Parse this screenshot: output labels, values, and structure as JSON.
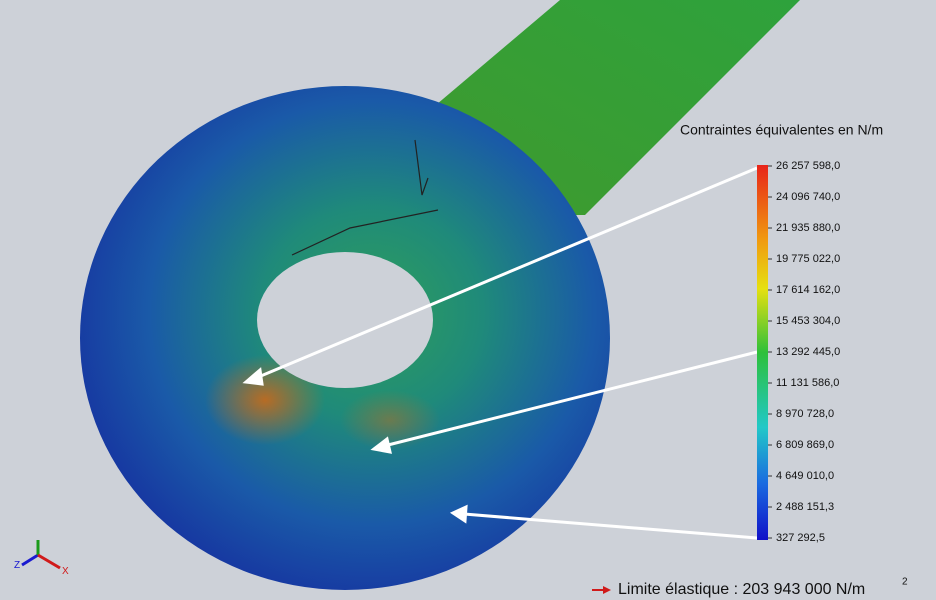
{
  "legend": {
    "title": "Contraintes équivalentes en N/m",
    "labels": [
      "26 257 598,0",
      "24 096 740,0",
      "21 935 880,0",
      "19 775 022,0",
      "17 614 162,0",
      "15 453 304,0",
      "13 292 445,0",
      "11 131 586,0",
      "8 970 728,0",
      "6 809 869,0",
      "4 649 010,0",
      "2 488 151,3",
      "327 292,5"
    ]
  },
  "limit": {
    "label": "Limite élastique : 203 943 000 N/m",
    "exponent": "2"
  },
  "triad": {
    "z": "Z",
    "x": "X"
  }
}
